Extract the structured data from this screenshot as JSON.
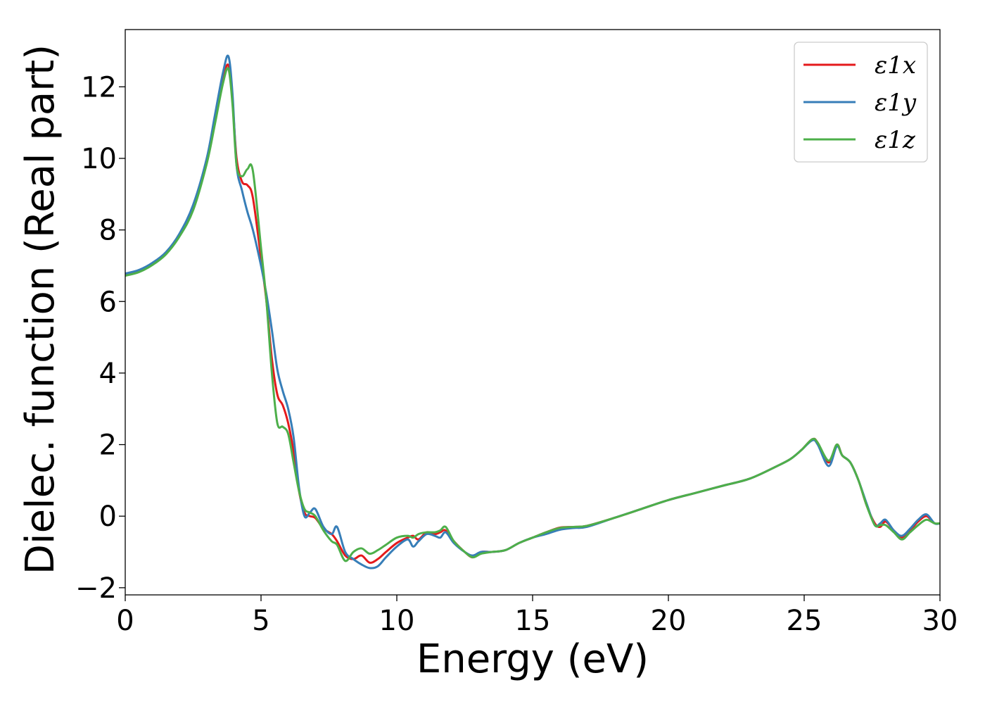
{
  "chart_data": {
    "type": "line",
    "title": "",
    "xlabel": "Energy (eV)",
    "ylabel": "Dielec. function (Real part)",
    "xlim": [
      0,
      30
    ],
    "ylim": [
      -2.2,
      13.6
    ],
    "xticks": [
      0,
      5,
      10,
      15,
      20,
      25,
      30
    ],
    "xtick_labels": [
      "0",
      "5",
      "10",
      "15",
      "20",
      "25",
      "30"
    ],
    "yticks": [
      -2,
      0,
      2,
      4,
      6,
      8,
      10,
      12
    ],
    "ytick_labels": [
      "−2",
      "0",
      "2",
      "4",
      "6",
      "8",
      "10",
      "12"
    ],
    "grid": false,
    "legend_position": "top-right",
    "series": [
      {
        "name": "ε1x",
        "color": "#e41a1c",
        "x": [
          0,
          0.5,
          1,
          1.5,
          2,
          2.5,
          3,
          3.3,
          3.6,
          3.8,
          3.95,
          4.1,
          4.3,
          4.5,
          4.7,
          5,
          5.2,
          5.4,
          5.6,
          5.8,
          6,
          6.2,
          6.4,
          6.6,
          6.8,
          7,
          7.3,
          7.6,
          7.8,
          8.1,
          8.4,
          8.7,
          9,
          9.3,
          9.6,
          10,
          10.4,
          10.6,
          10.8,
          11.1,
          11.4,
          11.6,
          11.8,
          12.1,
          12.5,
          12.8,
          13.1,
          13.5,
          14,
          14.5,
          15,
          15.5,
          16,
          16.5,
          17,
          18,
          19,
          20,
          21,
          22,
          23,
          24,
          24.5,
          24.9,
          25.3,
          25.5,
          25.9,
          26.2,
          26.4,
          26.7,
          27,
          27.3,
          27.6,
          27.8,
          28,
          28.3,
          28.6,
          28.9,
          29.2,
          29.5,
          29.8,
          30
        ],
        "y": [
          6.75,
          6.85,
          7.05,
          7.35,
          7.85,
          8.6,
          9.9,
          11.0,
          12.2,
          12.6,
          11.6,
          10.0,
          9.35,
          9.25,
          8.9,
          7.2,
          6.0,
          4.4,
          3.4,
          3.1,
          2.6,
          1.8,
          0.7,
          0.1,
          0.0,
          -0.05,
          -0.35,
          -0.5,
          -0.7,
          -1.1,
          -1.2,
          -1.1,
          -1.3,
          -1.2,
          -1.0,
          -0.75,
          -0.6,
          -0.55,
          -0.65,
          -0.45,
          -0.5,
          -0.45,
          -0.4,
          -0.7,
          -1.0,
          -1.15,
          -1.0,
          -1.0,
          -0.95,
          -0.75,
          -0.6,
          -0.45,
          -0.32,
          -0.3,
          -0.27,
          -0.05,
          0.2,
          0.45,
          0.65,
          0.85,
          1.05,
          1.4,
          1.6,
          1.85,
          2.15,
          2.05,
          1.5,
          2.0,
          1.7,
          1.5,
          1.0,
          0.3,
          -0.2,
          -0.3,
          -0.15,
          -0.4,
          -0.6,
          -0.4,
          -0.15,
          0.0,
          -0.2,
          -0.2
        ]
      },
      {
        "name": "ε1y",
        "color": "#377eb8",
        "x": [
          0,
          0.5,
          1,
          1.5,
          2,
          2.5,
          3,
          3.3,
          3.6,
          3.8,
          3.95,
          4.1,
          4.3,
          4.5,
          4.7,
          5,
          5.2,
          5.4,
          5.6,
          5.8,
          6,
          6.2,
          6.4,
          6.6,
          6.8,
          7,
          7.3,
          7.6,
          7.8,
          8.1,
          8.4,
          8.7,
          9,
          9.3,
          9.6,
          10,
          10.4,
          10.6,
          10.8,
          11.1,
          11.4,
          11.6,
          11.8,
          12.1,
          12.5,
          12.8,
          13.1,
          13.5,
          14,
          14.5,
          15,
          15.5,
          16,
          16.5,
          17,
          18,
          19,
          20,
          21,
          22,
          23,
          24,
          24.5,
          24.9,
          25.3,
          25.5,
          25.9,
          26.2,
          26.4,
          26.7,
          27,
          27.3,
          27.6,
          27.8,
          28,
          28.3,
          28.6,
          28.9,
          29.2,
          29.5,
          29.8,
          30
        ],
        "y": [
          6.78,
          6.88,
          7.08,
          7.38,
          7.9,
          8.7,
          10.0,
          11.2,
          12.4,
          12.85,
          11.8,
          9.8,
          9.1,
          8.5,
          8.0,
          7.0,
          6.2,
          5.2,
          4.1,
          3.5,
          3.0,
          2.2,
          0.8,
          0.0,
          0.1,
          0.2,
          -0.3,
          -0.5,
          -0.3,
          -1.0,
          -1.2,
          -1.35,
          -1.45,
          -1.4,
          -1.15,
          -0.85,
          -0.65,
          -0.85,
          -0.7,
          -0.5,
          -0.55,
          -0.6,
          -0.45,
          -0.75,
          -1.0,
          -1.1,
          -1.0,
          -1.0,
          -0.95,
          -0.75,
          -0.6,
          -0.5,
          -0.38,
          -0.33,
          -0.3,
          -0.05,
          0.2,
          0.45,
          0.65,
          0.85,
          1.05,
          1.4,
          1.6,
          1.85,
          2.12,
          2.0,
          1.4,
          1.95,
          1.7,
          1.5,
          1.0,
          0.35,
          -0.25,
          -0.2,
          -0.1,
          -0.4,
          -0.55,
          -0.35,
          -0.1,
          0.05,
          -0.2,
          -0.2
        ]
      },
      {
        "name": "ε1z",
        "color": "#4daf4a",
        "x": [
          0,
          0.5,
          1,
          1.5,
          2,
          2.5,
          3,
          3.3,
          3.6,
          3.8,
          3.95,
          4.1,
          4.3,
          4.5,
          4.7,
          5,
          5.2,
          5.4,
          5.6,
          5.8,
          6,
          6.2,
          6.4,
          6.6,
          6.8,
          7,
          7.3,
          7.6,
          7.8,
          8.1,
          8.4,
          8.7,
          9,
          9.3,
          9.6,
          10,
          10.4,
          10.6,
          10.8,
          11.1,
          11.4,
          11.6,
          11.8,
          12.1,
          12.5,
          12.8,
          13.1,
          13.5,
          14,
          14.5,
          15,
          15.5,
          16,
          16.5,
          17,
          18,
          19,
          20,
          21,
          22,
          23,
          24,
          24.5,
          24.9,
          25.3,
          25.5,
          25.9,
          26.2,
          26.4,
          26.7,
          27,
          27.3,
          27.6,
          27.8,
          28,
          28.3,
          28.6,
          28.9,
          29.2,
          29.5,
          29.8,
          30
        ],
        "y": [
          6.72,
          6.82,
          7.02,
          7.32,
          7.82,
          8.55,
          9.85,
          10.95,
          12.1,
          12.5,
          11.5,
          9.8,
          9.5,
          9.7,
          9.65,
          7.5,
          6.0,
          4.0,
          2.6,
          2.5,
          2.3,
          1.5,
          0.7,
          0.2,
          0.1,
          0.0,
          -0.4,
          -0.7,
          -0.8,
          -1.25,
          -1.0,
          -0.9,
          -1.05,
          -0.95,
          -0.8,
          -0.6,
          -0.55,
          -0.6,
          -0.5,
          -0.45,
          -0.45,
          -0.4,
          -0.3,
          -0.7,
          -1.0,
          -1.15,
          -1.05,
          -1.0,
          -0.95,
          -0.75,
          -0.6,
          -0.45,
          -0.33,
          -0.3,
          -0.27,
          -0.05,
          0.2,
          0.45,
          0.65,
          0.85,
          1.05,
          1.4,
          1.6,
          1.85,
          2.15,
          2.05,
          1.55,
          2.0,
          1.7,
          1.5,
          1.0,
          0.3,
          -0.25,
          -0.25,
          -0.25,
          -0.45,
          -0.65,
          -0.45,
          -0.25,
          -0.1,
          -0.2,
          -0.2
        ]
      }
    ]
  }
}
